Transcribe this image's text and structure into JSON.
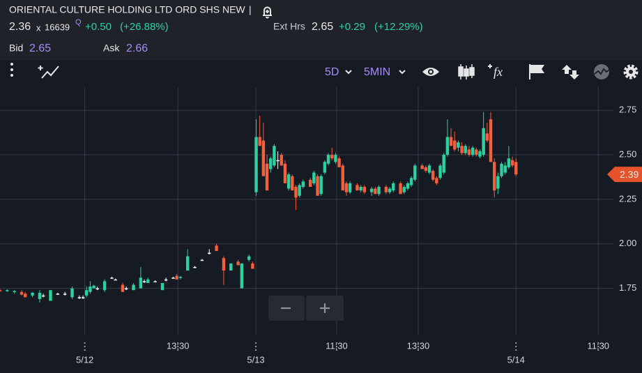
{
  "header": {
    "title": "ORIENTAL CULTURE HOLDING LTD ORD SHS NEW",
    "separator": "|",
    "last_price": "2.36",
    "size_prefix": "x",
    "size": "16639",
    "quote_flag": "Q",
    "change": "+0.50",
    "change_pct": "(+26.88%)",
    "ext_label": "Ext Hrs",
    "ext_price": "2.65",
    "ext_change": "+0.29",
    "ext_change_pct": "(+12.29%)",
    "bid_label": "Bid",
    "bid": "2.65",
    "ask_label": "Ask",
    "ask": "2.66"
  },
  "toolbar": {
    "range": "5D",
    "interval": "5MIN",
    "formula_icon": "fx"
  },
  "chart_data": {
    "type": "candlestick",
    "x": [
      0,
      2,
      4,
      6,
      7,
      9,
      11,
      12,
      14,
      16,
      18,
      20,
      22,
      23,
      24,
      25,
      26,
      27,
      29,
      31,
      32,
      34,
      35,
      37,
      39,
      40,
      41,
      43,
      45,
      46,
      48,
      49,
      50,
      52,
      54,
      56,
      58,
      60,
      62,
      64,
      66,
      67,
      69,
      70,
      71,
      72,
      73,
      74,
      75,
      76,
      77,
      78,
      79,
      80,
      81,
      82,
      83,
      84,
      86,
      87,
      88,
      89,
      90,
      91,
      92,
      93,
      94,
      95,
      96,
      97,
      99,
      100,
      101,
      103,
      104,
      105,
      107,
      108,
      109,
      111,
      112,
      113,
      114,
      115,
      117,
      118,
      119,
      120,
      121,
      122,
      123,
      124,
      125,
      126,
      127,
      128,
      129,
      130,
      131,
      132,
      133,
      134,
      135,
      136,
      137,
      138,
      139,
      140,
      141,
      142,
      143
    ],
    "open": [
      1.74,
      1.735,
      1.73,
      1.73,
      1.72,
      1.71,
      1.69,
      1.71,
      1.68,
      1.72,
      1.72,
      1.7,
      1.7,
      1.7,
      1.71,
      1.73,
      1.75,
      1.75,
      1.74,
      1.81,
      1.8,
      1.77,
      1.75,
      1.74,
      1.75,
      1.79,
      1.78,
      1.79,
      1.74,
      1.8,
      1.81,
      1.82,
      1.81,
      1.85,
      1.87,
      1.91,
      1.95,
      1.99,
      1.92,
      1.85,
      1.9,
      1.75,
      1.91,
      1.89,
      2.29,
      2.6,
      2.58,
      2.45,
      2.42,
      2.44,
      2.47,
      2.5,
      2.45,
      2.31,
      2.38,
      2.32,
      2.27,
      2.32,
      2.36,
      2.34,
      2.38,
      2.28,
      2.4,
      2.45,
      2.5,
      2.46,
      2.48,
      2.44,
      2.34,
      2.29,
      2.33,
      2.3,
      2.32,
      2.29,
      2.31,
      2.28,
      2.32,
      2.29,
      2.3,
      2.34,
      2.29,
      2.31,
      2.33,
      2.36,
      2.44,
      2.43,
      2.4,
      2.41,
      2.37,
      2.37,
      2.4,
      2.5,
      2.6,
      2.58,
      2.54,
      2.55,
      2.51,
      2.53,
      2.5,
      2.53,
      2.49,
      2.5,
      2.62,
      2.7,
      2.46,
      2.31,
      2.38,
      2.4,
      2.43,
      2.47,
      2.46
    ],
    "high": [
      1.745,
      1.745,
      1.74,
      1.74,
      1.73,
      1.73,
      1.74,
      1.72,
      1.74,
      1.725,
      1.73,
      1.76,
      1.71,
      1.71,
      1.76,
      1.79,
      1.77,
      1.76,
      1.8,
      1.815,
      1.805,
      1.78,
      1.76,
      1.78,
      1.87,
      1.8,
      1.81,
      1.795,
      1.78,
      1.81,
      1.815,
      1.83,
      1.82,
      1.97,
      1.875,
      1.915,
      1.97,
      2.0,
      1.93,
      1.89,
      1.91,
      1.89,
      1.94,
      1.9,
      2.7,
      2.72,
      2.68,
      2.5,
      2.49,
      2.56,
      2.52,
      2.51,
      2.47,
      2.4,
      2.39,
      2.33,
      2.34,
      2.36,
      2.37,
      2.41,
      2.39,
      2.39,
      2.47,
      2.51,
      2.54,
      2.51,
      2.49,
      2.45,
      2.35,
      2.35,
      2.34,
      2.33,
      2.33,
      2.32,
      2.32,
      2.33,
      2.33,
      2.32,
      2.35,
      2.35,
      2.33,
      2.35,
      2.38,
      2.45,
      2.45,
      2.44,
      2.45,
      2.42,
      2.38,
      2.45,
      2.51,
      2.7,
      2.65,
      2.63,
      2.58,
      2.57,
      2.56,
      2.55,
      2.55,
      2.54,
      2.53,
      2.74,
      2.68,
      2.74,
      2.48,
      2.4,
      2.46,
      2.46,
      2.55,
      2.49,
      2.48
    ],
    "low": [
      1.73,
      1.73,
      1.72,
      1.71,
      1.7,
      1.7,
      1.67,
      1.7,
      1.68,
      1.715,
      1.71,
      1.69,
      1.69,
      1.69,
      1.7,
      1.72,
      1.75,
      1.74,
      1.73,
      1.805,
      1.795,
      1.73,
      1.74,
      1.74,
      1.75,
      1.78,
      1.78,
      1.785,
      1.74,
      1.79,
      1.805,
      1.8,
      1.8,
      1.85,
      1.865,
      1.905,
      1.94,
      1.96,
      1.77,
      1.85,
      1.88,
      1.75,
      1.9,
      1.86,
      2.27,
      2.55,
      2.38,
      2.3,
      2.4,
      2.43,
      2.42,
      2.44,
      2.34,
      2.3,
      2.3,
      2.19,
      2.26,
      2.31,
      2.32,
      2.33,
      2.27,
      2.27,
      2.39,
      2.44,
      2.47,
      2.45,
      2.43,
      2.3,
      2.27,
      2.28,
      2.3,
      2.29,
      2.28,
      2.27,
      2.28,
      2.27,
      2.28,
      2.28,
      2.29,
      2.28,
      2.28,
      2.3,
      2.32,
      2.35,
      2.42,
      2.4,
      2.39,
      2.35,
      2.33,
      2.36,
      2.39,
      2.49,
      2.55,
      2.52,
      2.52,
      2.5,
      2.5,
      2.49,
      2.49,
      2.49,
      2.48,
      2.49,
      2.57,
      2.46,
      2.26,
      2.28,
      2.37,
      2.39,
      2.42,
      2.43,
      2.38
    ],
    "close": [
      1.735,
      1.74,
      1.735,
      1.715,
      1.7,
      1.725,
      1.725,
      1.71,
      1.74,
      1.72,
      1.72,
      1.75,
      1.7,
      1.7,
      1.74,
      1.76,
      1.765,
      1.75,
      1.79,
      1.81,
      1.8,
      1.73,
      1.75,
      1.77,
      1.81,
      1.79,
      1.8,
      1.79,
      1.78,
      1.8,
      1.81,
      1.8,
      1.815,
      1.93,
      1.87,
      1.91,
      1.95,
      1.96,
      1.85,
      1.89,
      1.88,
      1.89,
      1.93,
      1.86,
      2.6,
      2.55,
      2.38,
      2.3,
      2.48,
      2.55,
      2.47,
      2.44,
      2.34,
      2.39,
      2.3,
      2.26,
      2.33,
      2.35,
      2.32,
      2.4,
      2.27,
      2.38,
      2.46,
      2.5,
      2.48,
      2.5,
      2.43,
      2.3,
      2.29,
      2.34,
      2.3,
      2.32,
      2.29,
      2.31,
      2.28,
      2.32,
      2.29,
      2.31,
      2.34,
      2.28,
      2.32,
      2.34,
      2.37,
      2.44,
      2.42,
      2.41,
      2.44,
      2.36,
      2.34,
      2.44,
      2.5,
      2.6,
      2.55,
      2.53,
      2.57,
      2.51,
      2.55,
      2.5,
      2.54,
      2.5,
      2.52,
      2.65,
      2.58,
      2.46,
      2.3,
      2.38,
      2.45,
      2.44,
      2.48,
      2.44,
      2.39
    ],
    "up_color": "#2bd1a0",
    "down_color": "#f2603d",
    "flat_color": "#ffffff",
    "xlim": [
      0,
      170
    ],
    "xticks": [
      {
        "value": 23.5,
        "label": "5/12"
      },
      {
        "value": 49.3,
        "label": "13:30"
      },
      {
        "value": 70.9,
        "label": "5/13"
      },
      {
        "value": 93.3,
        "label": "11:30"
      },
      {
        "value": 115.9,
        "label": "13:30"
      },
      {
        "value": 143,
        "label": "5/14"
      },
      {
        "value": 165.8,
        "label": "11:30"
      }
    ],
    "ylim": [
      1.49,
      2.88
    ],
    "yticks": [
      {
        "value": 1.75,
        "label": "1.75"
      },
      {
        "value": 2,
        "label": "2.00"
      },
      2.25,
      {
        "value": 2.5,
        "label": "2.50"
      },
      2.75
    ],
    "grid": true,
    "last_price": 2.39,
    "last_price_color": "#e5532b"
  }
}
